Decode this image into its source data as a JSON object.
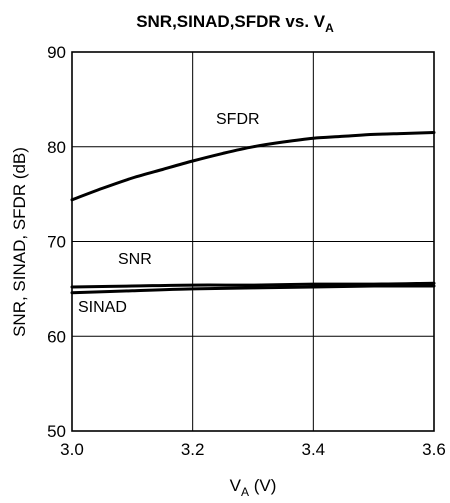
{
  "chart_data": {
    "type": "line",
    "title": {
      "main": "SNR,SINAD,SFDR vs. V",
      "sub": "A"
    },
    "xlabel": {
      "main": "V",
      "sub": "A",
      "unit": " (V)"
    },
    "ylabel": "SNR, SINAD, SFDR (dB)",
    "xlim": [
      3.0,
      3.6
    ],
    "ylim": [
      50,
      90
    ],
    "x_ticks": [
      "3.0",
      "3.2",
      "3.4",
      "3.6"
    ],
    "y_ticks": [
      "50",
      "60",
      "70",
      "80",
      "90"
    ],
    "grid": true,
    "series": [
      {
        "name": "SFDR",
        "x": [
          3.0,
          3.05,
          3.1,
          3.15,
          3.2,
          3.25,
          3.3,
          3.35,
          3.4,
          3.45,
          3.5,
          3.55,
          3.6
        ],
        "values": [
          74.4,
          75.6,
          76.7,
          77.6,
          78.5,
          79.3,
          80.0,
          80.5,
          80.9,
          81.1,
          81.3,
          81.4,
          81.5
        ]
      },
      {
        "name": "SNR",
        "x": [
          3.0,
          3.1,
          3.2,
          3.3,
          3.4,
          3.5,
          3.6
        ],
        "values": [
          65.2,
          65.3,
          65.4,
          65.4,
          65.5,
          65.5,
          65.6
        ]
      },
      {
        "name": "SINAD",
        "x": [
          3.0,
          3.1,
          3.2,
          3.3,
          3.4,
          3.5,
          3.6
        ],
        "values": [
          64.6,
          64.8,
          65.0,
          65.1,
          65.2,
          65.3,
          65.3
        ]
      }
    ]
  }
}
